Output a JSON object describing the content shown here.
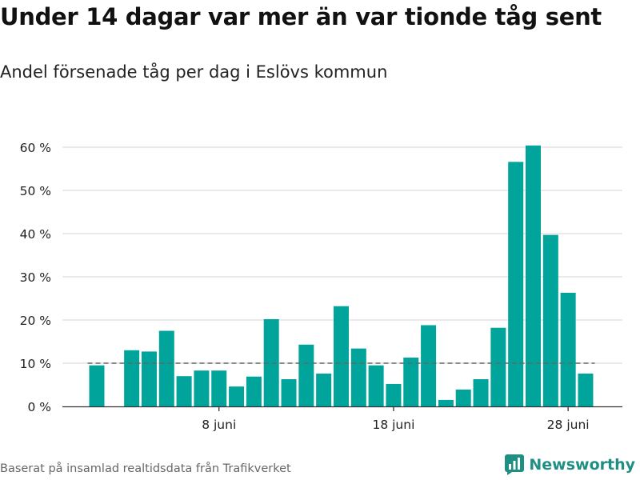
{
  "title": "Under 14 dagar var mer än var tionde tåg sent",
  "subtitle": "Andel försenade tåg per dag i Eslövs kommun",
  "source": "Baserat på insamlad realtidsdata från Trafikverket",
  "brand": {
    "name": "Newsworthy",
    "icon": "bar-chart-logo-icon",
    "color": "#1f8f84"
  },
  "colors": {
    "bar": "#00a49a",
    "grid": "#dddddd",
    "axis": "#333333",
    "reference": "#666666"
  },
  "chart_data": {
    "type": "bar",
    "x": [
      1,
      2,
      3,
      4,
      5,
      6,
      7,
      8,
      9,
      10,
      11,
      12,
      13,
      14,
      15,
      16,
      17,
      18,
      19,
      20,
      21,
      22,
      23,
      24,
      25,
      26,
      27,
      28,
      29,
      30
    ],
    "values": [
      9.5,
      null,
      13,
      12.7,
      17.5,
      7,
      8.3,
      8.3,
      4.6,
      6.9,
      20.2,
      6.3,
      14.3,
      7.6,
      23.2,
      13.4,
      9.5,
      5.2,
      11.3,
      18.8,
      1.5,
      3.9,
      6.3,
      18.2,
      56.6,
      60.4,
      39.7,
      26.3,
      7.6,
      null
    ],
    "ylim": [
      0,
      60
    ],
    "yticks": [
      0,
      10,
      20,
      30,
      40,
      50,
      60
    ],
    "ytick_labels": [
      "0 %",
      "10 %",
      "20 %",
      "30 %",
      "40 %",
      "50 %",
      "60 %"
    ],
    "xticks": [
      8,
      18,
      28
    ],
    "xtick_labels": [
      "8 juni",
      "18 juni",
      "28 juni"
    ],
    "reference_line": 10,
    "grid": true
  }
}
